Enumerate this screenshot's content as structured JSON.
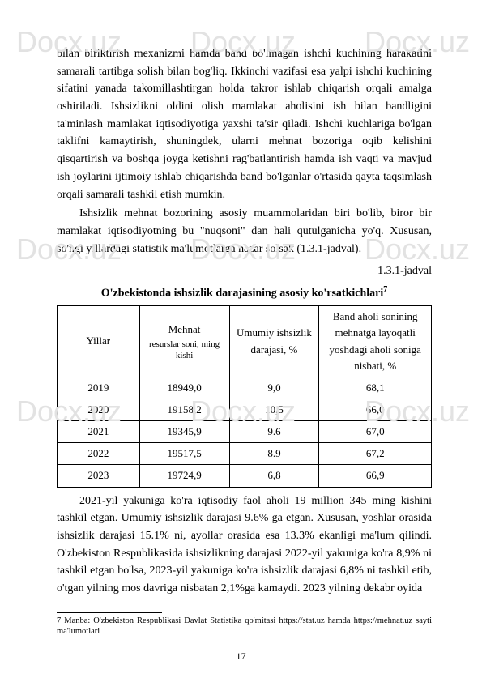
{
  "watermark": "Docx.uz",
  "paragraphs": {
    "p1": "bilan biriktirish mexanizmi hamda band bo'lmagan ishchi kuchining harakatini samarali tartibga solish bilan bog'liq. Ikkinchi vazifasi esa yalpi ishchi kuchining sifatini yanada takomillashtirgan holda takror ishlab chiqarish orqali amalga oshiriladi. Ishsizlikni oldini olish mamlakat aholisini ish bilan bandligini ta'minlash mamlakat iqtisodiyotiga yaxshi ta'sir qiladi. Ishchi kuchlariga bo'lgan taklifni kamaytirish, shuningdek, ularni mehnat bozoriga oqib kelishini qisqartirish va boshqa joyga ketishni rag'batlantirish hamda ish vaqti va mavjud ish joylarini ijtimoiy ishlab chiqarishda band bo'lganlar o'rtasida qayta taqsimlash orqali samarali tashkil etish mumkin.",
    "p2": "Ishsizlik mehnat bozorining asosiy muammolaridan biri bo'lib, biror bir mamlakat iqtisodiyotning bu \"nuqsoni\" dan hali qutulganicha yo'q. Xususan, so'ngi yillardagi statistik ma'lumotlarga nazar solsak (1.3.1-jadval).",
    "caption_right": "1.3.1-jadval",
    "table_title": "O'zbekistonda ishsizlik darajasining asosiy ko'rsatkichlari",
    "footnote_ref": "7",
    "p3": "2021-yil yakuniga ko'ra iqtisodiy faol aholi 19 million 345 ming kishini tashkil etgan. Umumiy ishsizlik darajasi 9.6% ga etgan. Xususan, yoshlar orasida ishsizlik darajasi 15.1% ni, ayollar orasida esa 13.3% ekanligi ma'lum qilindi. O'zbekiston Respublikasida ishsizlikning darajasi 2022-yil yakuniga ko'ra 8,9% ni tashkil etgan bo'lsa, 2023-yil yakuniga ko'ra ishsizlik darajasi 6,8% ni tashkil etib, o'tgan yilning mos davriga nisbatan 2,1%ga kamaydi. 2023 yilning dekabr oyida"
  },
  "table": {
    "headers": {
      "year": "Yillar",
      "labor_main": "Mehnat",
      "labor_sub": "resurslar soni, ming kishi",
      "unemp": "Umumiy ishsizlik darajasi, %",
      "band": "Band aholi sonining mehnatga layoqatli yoshdagi aholi soniga nisbati, %"
    },
    "rows": [
      {
        "year": "2019",
        "labor": "18949,0",
        "unemp": "9,0",
        "band": "68,1"
      },
      {
        "year": "2020",
        "labor": "19158,2",
        "unemp": "10,5",
        "band": "66,0"
      },
      {
        "year": "2021",
        "labor": "19345,9",
        "unemp": "9.6",
        "band": "67,0"
      },
      {
        "year": "2022",
        "labor": "19517,5",
        "unemp": "8.9",
        "band": "67,2"
      },
      {
        "year": "2023",
        "labor": "19724,9",
        "unemp": "6,8",
        "band": "66,9"
      }
    ]
  },
  "footnote": "7 Manba: O'zbekiston Respublikasi Davlat Statistika qo'mitasi https://stat.uz hamda https://mehnat.uz sayti ma'lumotlari",
  "page_number": "17"
}
